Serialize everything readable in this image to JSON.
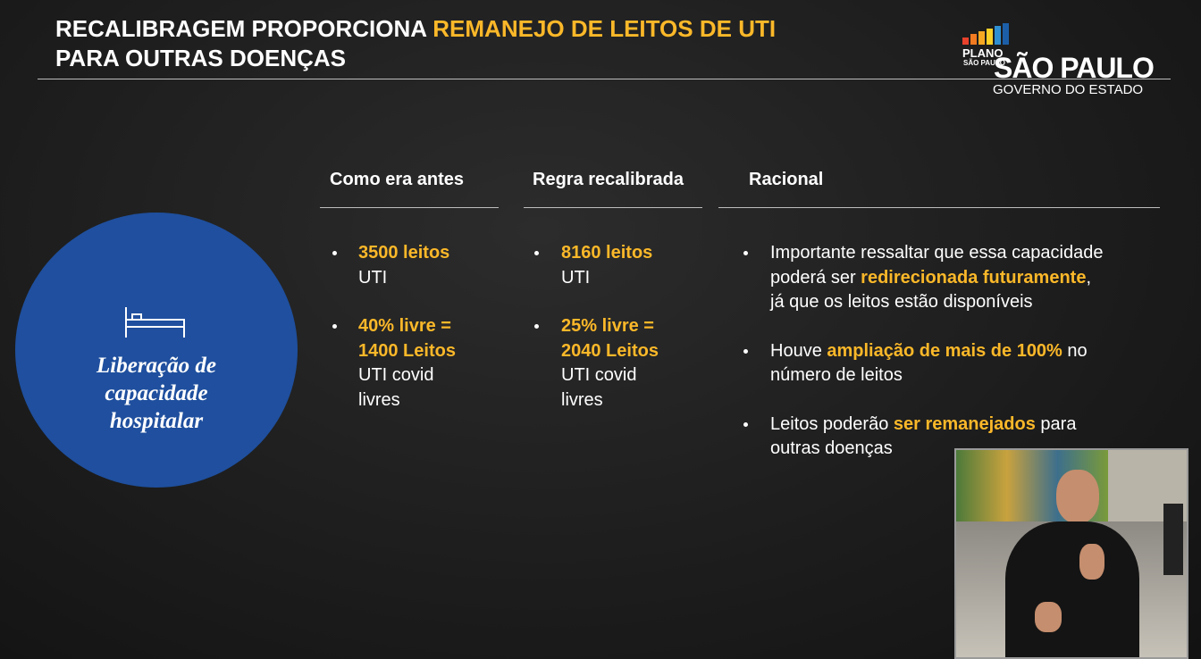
{
  "header": {
    "title_lines": [
      [
        {
          "text": "RECALIBRAGEM PROPORCIONA ",
          "color": "#ffffff"
        },
        {
          "text": "REMANEJO DE LEITOS DE UTI",
          "color": "#fbb829"
        }
      ],
      [
        {
          "text": "PARA OUTRAS DOENÇAS",
          "color": "#ffffff"
        }
      ]
    ]
  },
  "logo": {
    "plan": [
      "PLANO",
      "SÃO PAULO"
    ],
    "state": "SÃO PAULO",
    "government": "GOVERNO DO ESTADO"
  },
  "circle": {
    "lines": [
      "Liberação de",
      "capacidade",
      "hospitalar"
    ]
  },
  "columns": [
    {
      "heading": "Como era antes",
      "bullets": [
        [
          [
            {
              "text": "3500 leitos",
              "color": "#fbb829"
            }
          ],
          [
            {
              "text": "UTI",
              "color": "#ffffff"
            }
          ]
        ],
        [
          [
            {
              "text": "40% livre =",
              "color": "#fbb829"
            }
          ],
          [
            {
              "text": "1400 Leitos",
              "color": "#fbb829"
            }
          ],
          [
            {
              "text": "UTI covid",
              "color": "#ffffff"
            }
          ],
          [
            {
              "text": "livres",
              "color": "#ffffff"
            }
          ]
        ]
      ]
    },
    {
      "heading": "Regra recalibrada",
      "bullets": [
        [
          [
            {
              "text": "8160 leitos",
              "color": "#fbb829"
            }
          ],
          [
            {
              "text": "UTI",
              "color": "#ffffff"
            }
          ]
        ],
        [
          [
            {
              "text": "25% livre =",
              "color": "#fbb829"
            }
          ],
          [
            {
              "text": "2040 Leitos",
              "color": "#fbb829"
            }
          ],
          [
            {
              "text": "UTI covid",
              "color": "#ffffff"
            }
          ],
          [
            {
              "text": "livres",
              "color": "#ffffff"
            }
          ]
        ]
      ]
    },
    {
      "heading": "Racional",
      "bullets": [
        [
          [
            {
              "text": "Importante ressaltar que essa capacidade",
              "color": "#ffffff"
            }
          ],
          [
            {
              "text": "poderá ser ",
              "color": "#ffffff"
            },
            {
              "text": "redirecionada futuramente",
              "color": "#fbb829"
            },
            {
              "text": ",",
              "color": "#ffffff"
            }
          ],
          [
            {
              "text": "já que os leitos estão disponíveis",
              "color": "#ffffff"
            }
          ]
        ],
        [
          [
            {
              "text": "Houve ",
              "color": "#ffffff"
            },
            {
              "text": "ampliação de mais de 100%",
              "color": "#fbb829"
            },
            {
              "text": " no",
              "color": "#ffffff"
            }
          ],
          [
            {
              "text": "número de leitos",
              "color": "#ffffff"
            }
          ]
        ],
        [
          [
            {
              "text": "Leitos poderão ",
              "color": "#ffffff"
            },
            {
              "text": "ser remanejados",
              "color": "#fbb829"
            },
            {
              "text": " para",
              "color": "#ffffff"
            }
          ],
          [
            {
              "text": "outras doenças",
              "color": "#ffffff"
            }
          ]
        ]
      ]
    }
  ]
}
